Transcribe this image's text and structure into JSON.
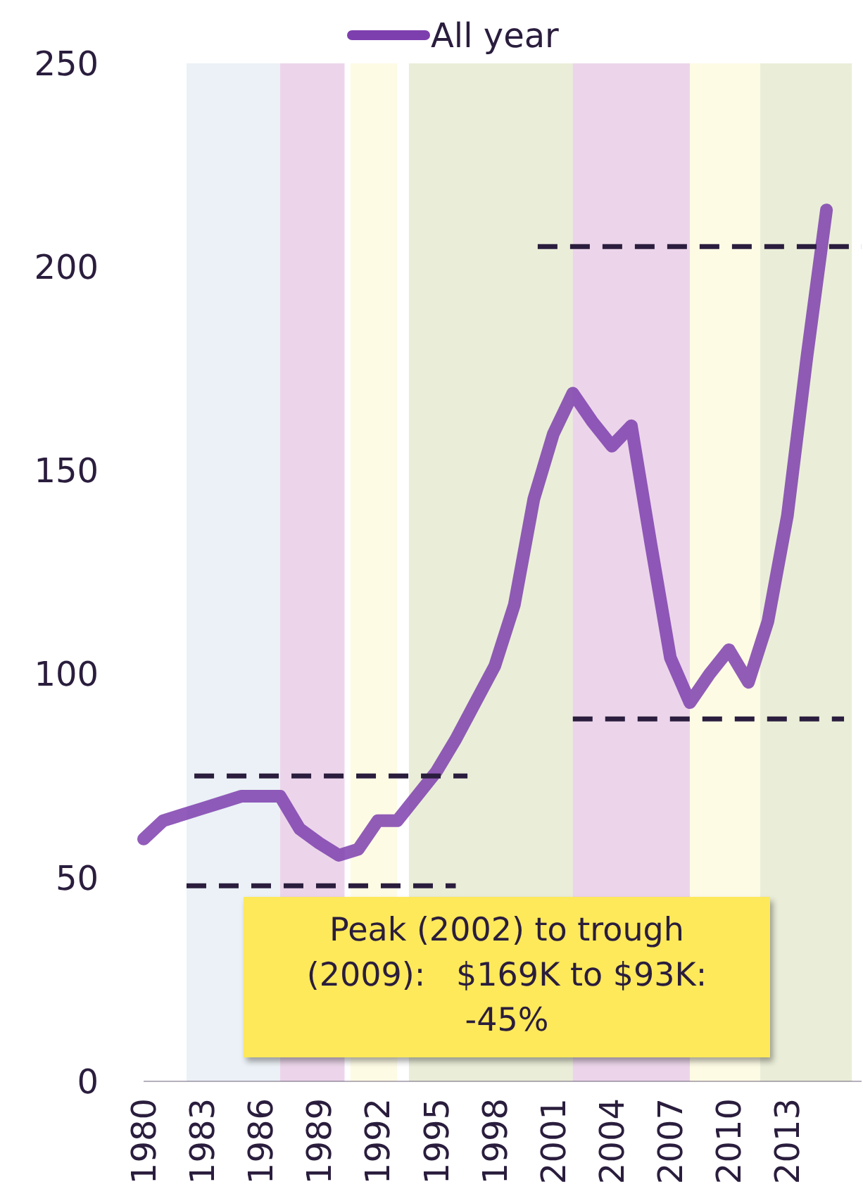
{
  "chart_data": {
    "type": "line",
    "legend": "top",
    "marker": "none",
    "x": [
      1980,
      1981,
      1982,
      1983,
      1984,
      1985,
      1986,
      1987,
      1988,
      1989,
      1990,
      1991,
      1992,
      1993,
      1994,
      1995,
      1996,
      1997,
      1998,
      1999,
      2000,
      2001,
      2002,
      2003,
      2004,
      2005,
      2006,
      2007,
      2008,
      2009,
      2010,
      2011,
      2012,
      2013,
      2014,
      2015
    ],
    "series": [
      {
        "name": "All year",
        "color": "#7e3fae",
        "values": [
          59.5,
          64,
          65.5,
          67,
          68.5,
          70,
          70,
          70,
          62,
          58.5,
          55.5,
          57,
          64,
          64,
          70,
          76,
          84,
          93,
          102,
          117,
          143,
          159,
          169,
          162,
          156,
          161,
          132,
          104,
          93,
          100,
          106,
          98,
          113,
          139,
          178,
          214
        ]
      },
      {
        "color": "#2a1d3d",
        "line_style": "dashed",
        "x": [
          1982.6,
          1996.6
        ],
        "values": [
          75,
          75
        ]
      },
      {
        "color": "#2a1d3d",
        "line_style": "dashed",
        "x": [
          1982.2,
          1996
        ],
        "values": [
          48,
          48
        ]
      },
      {
        "color": "#2a1d3d",
        "line_style": "dashed",
        "x": [
          2000.2,
          2016.8
        ],
        "values": [
          205,
          205
        ]
      },
      {
        "color": "#2a1d3d",
        "line_style": "dashed",
        "x": [
          2002,
          2015.9
        ],
        "values": [
          89,
          89
        ]
      }
    ],
    "bands": [
      {
        "axis": "x",
        "from": 1982.2,
        "to": 1987,
        "color": "#dbe5ef"
      },
      {
        "axis": "x",
        "from": 1987,
        "to": 1990.3,
        "color": "#ddb3d9"
      },
      {
        "axis": "x",
        "from": 1990.6,
        "to": 1993,
        "color": "#fdf7cf"
      },
      {
        "axis": "x",
        "from": 1993.6,
        "to": 2002,
        "color": "#d8e0b8"
      },
      {
        "axis": "x",
        "from": 2002,
        "to": 2008,
        "color": "#ddb3d9"
      },
      {
        "axis": "x",
        "from": 2008,
        "to": 2011.6,
        "color": "#fdf7cf"
      },
      {
        "axis": "x",
        "from": 2011.6,
        "to": 2016.3,
        "color": "#d8e0b8"
      }
    ],
    "annotations": [
      "Peak (2002) to trough (2009):   $169K to $93K: -45%"
    ],
    "xlim": [
      1980,
      2016.8
    ],
    "xticks": [
      1980,
      1983,
      1986,
      1989,
      1992,
      1995,
      1998,
      2001,
      2004,
      2007,
      2010,
      2013
    ],
    "ylim": [
      0,
      250
    ],
    "yticks": [
      0,
      50,
      100,
      150,
      200,
      250
    ],
    "grid": false
  }
}
